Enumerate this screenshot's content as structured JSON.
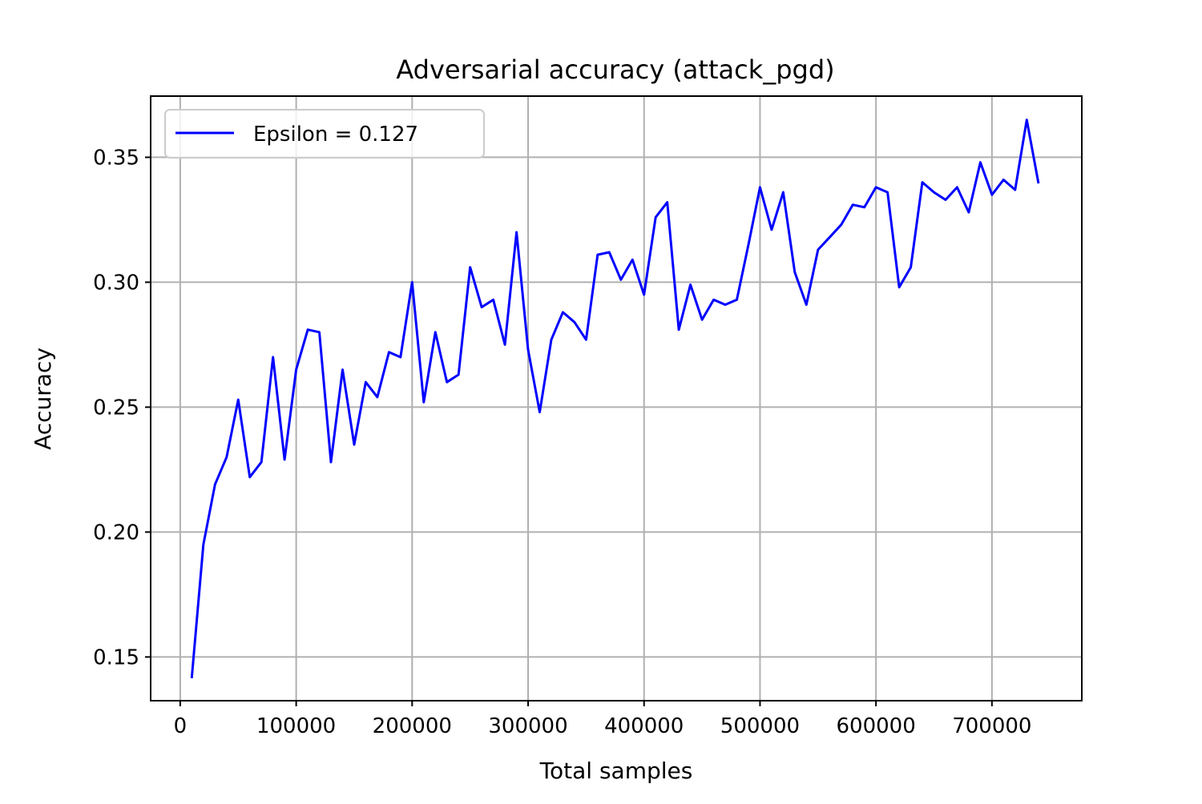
{
  "chart_data": {
    "type": "line",
    "title": "Adversarial accuracy (attack_pgd)",
    "xlabel": "Total samples",
    "ylabel": "Accuracy",
    "xlim": [
      -25500,
      777500
    ],
    "ylim": [
      0.1325,
      0.3745
    ],
    "xticks": [
      0,
      100000,
      200000,
      300000,
      400000,
      500000,
      600000,
      700000
    ],
    "xtick_labels": [
      "0",
      "100000",
      "200000",
      "300000",
      "400000",
      "500000",
      "600000",
      "700000"
    ],
    "yticks": [
      0.15,
      0.2,
      0.25,
      0.3,
      0.35
    ],
    "ytick_labels": [
      "0.15",
      "0.20",
      "0.25",
      "0.30",
      "0.35"
    ],
    "grid": true,
    "legend_position": "top-left",
    "series": [
      {
        "name": "Epsilon = 0.127",
        "color": "#0000ff",
        "x": [
          10000,
          20000,
          30000,
          40000,
          50000,
          60000,
          70000,
          80000,
          90000,
          100000,
          110000,
          120000,
          130000,
          140000,
          150000,
          160000,
          170000,
          180000,
          190000,
          200000,
          210000,
          220000,
          230000,
          240000,
          250000,
          260000,
          270000,
          280000,
          290000,
          300000,
          310000,
          320000,
          330000,
          340000,
          350000,
          360000,
          370000,
          380000,
          390000,
          400000,
          410000,
          420000,
          430000,
          440000,
          450000,
          460000,
          470000,
          480000,
          490000,
          500000,
          510000,
          520000,
          530000,
          540000,
          550000,
          560000,
          570000,
          580000,
          590000,
          600000,
          610000,
          620000,
          630000,
          640000,
          650000,
          660000,
          670000,
          680000,
          690000,
          700000,
          710000,
          720000,
          730000,
          740000
        ],
        "y": [
          0.142,
          0.195,
          0.219,
          0.23,
          0.253,
          0.222,
          0.228,
          0.27,
          0.229,
          0.265,
          0.281,
          0.28,
          0.228,
          0.265,
          0.235,
          0.26,
          0.254,
          0.272,
          0.27,
          0.3,
          0.252,
          0.28,
          0.26,
          0.263,
          0.306,
          0.29,
          0.293,
          0.275,
          0.32,
          0.273,
          0.248,
          0.277,
          0.288,
          0.284,
          0.277,
          0.311,
          0.312,
          0.301,
          0.309,
          0.295,
          0.326,
          0.332,
          0.281,
          0.299,
          0.285,
          0.293,
          0.291,
          0.293,
          0.315,
          0.338,
          0.321,
          0.336,
          0.304,
          0.291,
          0.313,
          0.318,
          0.323,
          0.331,
          0.33,
          0.338,
          0.336,
          0.298,
          0.306,
          0.34,
          0.336,
          0.333,
          0.338,
          0.328,
          0.348,
          0.335,
          0.341,
          0.337,
          0.365,
          0.34
        ]
      }
    ]
  }
}
